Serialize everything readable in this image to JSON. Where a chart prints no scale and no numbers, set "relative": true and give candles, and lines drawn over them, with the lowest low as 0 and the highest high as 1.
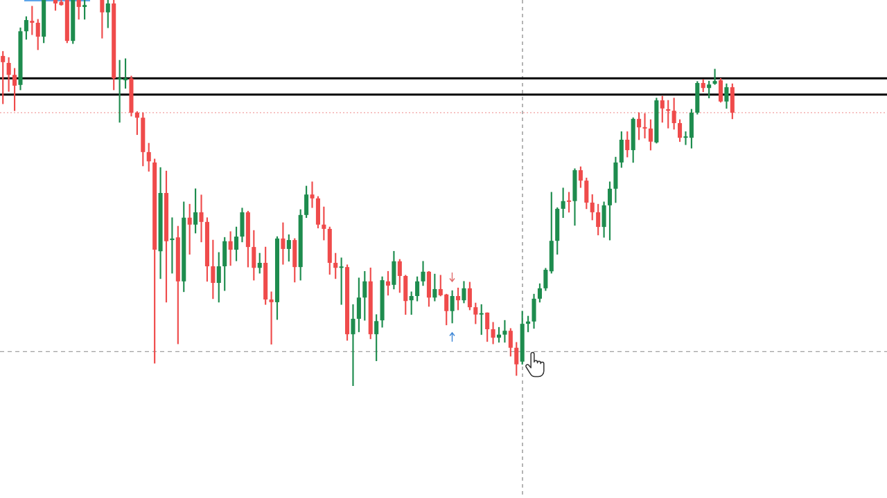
{
  "chart_data": {
    "type": "candlestick",
    "relative": true,
    "tick_labels": false,
    "categories": [
      null,
      null,
      null,
      null,
      null,
      null,
      null,
      null,
      null,
      null,
      null,
      null,
      null,
      null,
      null,
      null,
      null,
      null,
      null,
      null,
      null,
      null,
      null,
      null,
      null,
      null,
      null,
      null,
      null,
      null,
      null,
      null,
      null,
      null,
      null,
      null,
      null,
      null,
      null,
      null,
      null,
      null,
      null,
      null,
      null,
      null,
      null,
      null,
      null,
      null,
      null,
      null,
      null,
      null,
      null,
      null,
      null,
      null,
      null,
      null,
      null,
      null,
      null,
      null,
      null,
      null,
      null,
      null,
      null,
      null,
      null,
      null,
      null,
      null,
      null,
      null,
      null,
      null,
      null,
      null,
      null,
      null,
      null,
      null,
      null,
      null,
      null,
      null,
      null,
      null,
      null,
      null,
      null,
      null,
      null,
      null,
      null,
      null,
      null,
      null,
      null,
      null,
      null,
      null,
      null,
      null,
      null,
      null,
      null,
      null,
      null,
      null,
      null,
      null,
      null,
      null,
      null,
      null,
      null,
      null,
      null,
      null,
      null,
      null,
      null,
      null,
      null,
      null,
      null,
      null,
      null,
      null,
      null,
      null,
      null,
      null,
      null,
      null,
      null,
      null,
      null,
      null,
      null,
      null,
      null,
      null,
      null,
      null,
      null,
      null,
      null,
      null
    ],
    "ohlc": [
      [
        0.855,
        0.867,
        0.731,
        0.839
      ],
      [
        0.837,
        0.851,
        0.763,
        0.806
      ],
      [
        0.806,
        0.823,
        0.713,
        0.778
      ],
      [
        0.78,
        0.928,
        0.767,
        0.919
      ],
      [
        0.919,
        0.957,
        0.898,
        0.948
      ],
      [
        0.946,
        0.984,
        0.91,
        0.941
      ],
      [
        0.941,
        0.95,
        0.871,
        0.905
      ],
      [
        0.905,
        1,
        0.889,
        1
      ],
      null,
      [
        1,
        1,
        0.973,
        0.991
      ],
      [
        0.995,
        1,
        0.986,
        0.987
      ],
      [
        1,
        1,
        0.889,
        0.894
      ],
      [
        0.894,
        1,
        0.887,
        1
      ],
      [
        1,
        1,
        0.95,
        0.982
      ],
      [
        0.982,
        1,
        0.95,
        0.987
      ],
      null,
      null,
      [
        1,
        1,
        0.901,
        0.968
      ],
      [
        0.968,
        1,
        0.928,
        0.991
      ],
      [
        0.991,
        1,
        0.767,
        0.797
      ],
      [
        0.794,
        0.844,
        0.683,
        0.797
      ],
      [
        0.792,
        0.848,
        0.771,
        0.797
      ],
      [
        0.797,
        0.803,
        0.699,
        0.708
      ],
      [
        0.708,
        0.711,
        0.651,
        0.695
      ],
      [
        0.695,
        0.708,
        0.57,
        0.606
      ],
      [
        0.606,
        0.629,
        0.556,
        0.582
      ],
      [
        0.579,
        0.588,
        0.059,
        0.353
      ],
      [
        0.349,
        0.566,
        0.278,
        0.5
      ],
      [
        0.5,
        0.557,
        0.217,
        0.375
      ],
      [
        0.378,
        0.436,
        0.292,
        0.382
      ],
      [
        0.385,
        0.414,
        0.109,
        0.271
      ],
      [
        0.271,
        0.477,
        0.244,
        0.436
      ],
      [
        0.436,
        0.471,
        0.341,
        0.418
      ],
      [
        0.418,
        0.511,
        0.396,
        0.45
      ],
      [
        0.45,
        0.495,
        0.373,
        0.425
      ],
      [
        0.425,
        0.436,
        0.271,
        0.31
      ],
      [
        0.31,
        0.378,
        0.226,
        0.267
      ],
      [
        0.267,
        0.346,
        0.217,
        0.31
      ],
      [
        0.31,
        0.385,
        0.247,
        0.375
      ],
      [
        0.375,
        0.4,
        0.312,
        0.353
      ],
      [
        0.353,
        0.412,
        0.324,
        0.387
      ],
      [
        0.387,
        0.461,
        0.373,
        0.45
      ],
      [
        0.45,
        0.453,
        0.308,
        0.36
      ],
      [
        0.36,
        0.403,
        0.274,
        0.306
      ],
      [
        0.306,
        0.344,
        0.292,
        0.319
      ],
      [
        0.319,
        0.36,
        0.211,
        0.224
      ],
      [
        0.224,
        0.244,
        0.108,
        0.217
      ],
      [
        0.217,
        0.387,
        0.172,
        0.382
      ],
      [
        0.382,
        0.423,
        0.315,
        0.355
      ],
      [
        0.355,
        0.392,
        0.323,
        0.378
      ],
      [
        0.378,
        0.382,
        0.269,
        0.308
      ],
      [
        0.308,
        0.457,
        0.274,
        0.443
      ],
      [
        0.443,
        0.518,
        0.436,
        0.496
      ],
      [
        0.496,
        0.529,
        0.462,
        0.486
      ],
      [
        0.486,
        0.491,
        0.409,
        0.418
      ],
      [
        0.418,
        0.464,
        0.378,
        0.407
      ],
      [
        0.407,
        0.412,
        0.289,
        0.319
      ],
      [
        0.319,
        0.344,
        0.278,
        0.306
      ],
      [
        0.306,
        0.332,
        0.211,
        0.308
      ],
      [
        0.308,
        0.314,
        0.118,
        0.134
      ],
      [
        0.134,
        0.211,
        0,
        0.174
      ],
      [
        0.174,
        0.28,
        0.14,
        0.229
      ],
      [
        0.229,
        0.297,
        0.17,
        0.271
      ],
      [
        0.271,
        0.306,
        0.122,
        0.134
      ],
      [
        0.134,
        0.185,
        0.065,
        0.168
      ],
      [
        0.17,
        0.283,
        0.152,
        0.274
      ],
      [
        0.271,
        0.297,
        0.235,
        0.26
      ],
      [
        0.262,
        0.349,
        0.251,
        0.323
      ],
      [
        0.323,
        0.328,
        0.242,
        0.285
      ],
      [
        0.285,
        0.287,
        0.185,
        0.22
      ],
      [
        0.222,
        0.244,
        0.185,
        0.233
      ],
      [
        0.233,
        0.283,
        0.22,
        0.271
      ],
      [
        0.271,
        0.323,
        0.26,
        0.296
      ],
      [
        0.296,
        0.297,
        0.206,
        0.229
      ],
      [
        0.229,
        0.29,
        0.22,
        0.251
      ],
      [
        0.251,
        0.287,
        0.233,
        0.235
      ],
      [
        0.237,
        0.238,
        0.158,
        0.194
      ],
      [
        0.194,
        0.247,
        0.163,
        0.233
      ],
      [
        0.233,
        0.254,
        0.197,
        0.222
      ],
      [
        0.222,
        0.271,
        0.215,
        0.253
      ],
      [
        0.253,
        0.269,
        0.197,
        0.204
      ],
      [
        0.204,
        0.215,
        0.161,
        0.185
      ],
      [
        0.185,
        0.211,
        0.133,
        0.188
      ],
      [
        0.19,
        0.19,
        0.115,
        0.147
      ],
      [
        0.147,
        0.165,
        0.109,
        0.125
      ],
      [
        0.125,
        0.152,
        0.113,
        0.133
      ],
      [
        0.133,
        0.17,
        0.113,
        0.143
      ],
      [
        0.143,
        0.149,
        0.077,
        0.099
      ],
      [
        0.099,
        0.113,
        0.027,
        0.056
      ],
      [
        0.063,
        0.194,
        0.056,
        0.161
      ],
      [
        0.161,
        0.181,
        0.14,
        0.167
      ],
      [
        0.167,
        0.238,
        0.149,
        0.226
      ],
      [
        0.226,
        0.265,
        0.217,
        0.253
      ],
      [
        0.253,
        0.305,
        0.247,
        0.301
      ],
      [
        0.297,
        0.502,
        0.292,
        0.376
      ],
      [
        0.376,
        0.462,
        0.341,
        0.459
      ],
      [
        0.459,
        0.513,
        0.436,
        0.479
      ],
      [
        0.48,
        0.502,
        0.45,
        0.477
      ],
      [
        0.479,
        0.563,
        0.416,
        0.559
      ],
      [
        0.559,
        0.568,
        0.514,
        0.532
      ],
      [
        0.532,
        0.539,
        0.459,
        0.475
      ],
      [
        0.475,
        0.496,
        0.43,
        0.45
      ],
      [
        0.45,
        0.471,
        0.391,
        0.412
      ],
      [
        0.412,
        0.477,
        0.385,
        0.468
      ],
      [
        0.468,
        0.529,
        0.378,
        0.511
      ],
      [
        0.511,
        0.593,
        0.475,
        0.579
      ],
      [
        0.579,
        0.659,
        0.566,
        0.638
      ],
      [
        0.638,
        0.659,
        0.593,
        0.611
      ],
      [
        0.611,
        0.695,
        0.579,
        0.692
      ],
      [
        0.692,
        0.708,
        0.638,
        0.67
      ],
      [
        0.67,
        0.706,
        0.642,
        0.667
      ],
      [
        0.667,
        0.69,
        0.611,
        0.633
      ],
      [
        0.631,
        0.746,
        0.629,
        0.74
      ],
      [
        0.74,
        0.751,
        0.683,
        0.719
      ],
      [
        0.717,
        0.74,
        0.668,
        0.713
      ],
      [
        0.713,
        0.746,
        0.665,
        0.681
      ],
      [
        0.681,
        0.69,
        0.633,
        0.643
      ],
      [
        0.643,
        0.659,
        0.625,
        0.645
      ],
      [
        0.643,
        0.717,
        0.616,
        0.708
      ],
      [
        0.708,
        0.789,
        0.704,
        0.785
      ],
      [
        0.785,
        0.794,
        0.762,
        0.772
      ],
      [
        0.772,
        0.79,
        0.746,
        0.781
      ],
      [
        0.783,
        0.821,
        0.781,
        0.79
      ],
      [
        0.792,
        0.797,
        0.735,
        0.737
      ],
      [
        0.737,
        0.783,
        0.719,
        0.774
      ],
      [
        0.774,
        0.783,
        0.692,
        0.708
      ],
      null,
      null,
      null,
      null,
      null,
      null,
      null,
      null,
      null,
      null,
      null,
      null,
      null,
      null,
      null,
      null,
      null,
      null,
      null,
      null,
      null,
      null,
      null,
      null,
      null,
      null
    ],
    "colors": [
      "#ef4b4b",
      "#ef4b4b",
      "#ef4b4b",
      "#1e8c4e",
      "#1e8c4e",
      "#ef4b4b",
      "#ef4b4b",
      "#1e8c4e",
      null,
      "#ef4b4b",
      "#ef4b4b",
      "#ef4b4b",
      "#1e8c4e",
      "#ef4b4b",
      "#1e8c4e",
      null,
      null,
      "#ef4b4b",
      "#1e8c4e",
      "#ef4b4b",
      "#1e8c4e",
      "#1e8c4e",
      "#ef4b4b",
      "#ef4b4b",
      "#ef4b4b",
      "#ef4b4b",
      "#ef4b4b",
      "#1e8c4e",
      "#ef4b4b",
      "#1e8c4e",
      "#ef4b4b",
      "#1e8c4e",
      "#ef4b4b",
      "#1e8c4e",
      "#ef4b4b",
      "#ef4b4b",
      "#ef4b4b",
      "#1e8c4e",
      "#1e8c4e",
      "#ef4b4b",
      "#1e8c4e",
      "#1e8c4e",
      "#ef4b4b",
      "#ef4b4b",
      "#1e8c4e",
      "#ef4b4b",
      "#ef4b4b",
      "#1e8c4e",
      "#ef4b4b",
      "#1e8c4e",
      "#ef4b4b",
      "#1e8c4e",
      "#1e8c4e",
      "#ef4b4b",
      "#ef4b4b",
      "#ef4b4b",
      "#ef4b4b",
      "#ef4b4b",
      "#1e8c4e",
      "#ef4b4b",
      "#1e8c4e",
      "#1e8c4e",
      "#1e8c4e",
      "#ef4b4b",
      "#1e8c4e",
      "#1e8c4e",
      "#ef4b4b",
      "#1e8c4e",
      "#ef4b4b",
      "#ef4b4b",
      "#1e8c4e",
      "#1e8c4e",
      "#1e8c4e",
      "#ef4b4b",
      "#1e8c4e",
      "#ef4b4b",
      "#ef4b4b",
      "#1e8c4e",
      "#ef4b4b",
      "#1e8c4e",
      "#ef4b4b",
      "#ef4b4b",
      "#1e8c4e",
      "#ef4b4b",
      "#ef4b4b",
      "#1e8c4e",
      "#1e8c4e",
      "#ef4b4b",
      "#ef4b4b",
      "#1e8c4e",
      "#1e8c4e",
      "#1e8c4e",
      "#1e8c4e",
      "#1e8c4e",
      "#1e8c4e",
      "#1e8c4e",
      "#1e8c4e",
      "#ef4b4b",
      "#1e8c4e",
      "#ef4b4b",
      "#ef4b4b",
      "#ef4b4b",
      "#ef4b4b",
      "#1e8c4e",
      "#1e8c4e",
      "#1e8c4e",
      "#1e8c4e",
      "#ef4b4b",
      "#1e8c4e",
      "#ef4b4b",
      "#ef4b4b",
      "#ef4b4b",
      "#1e8c4e",
      "#ef4b4b",
      "#ef4b4b",
      "#ef4b4b",
      "#ef4b4b",
      "#1e8c4e",
      "#1e8c4e",
      "#1e8c4e",
      "#ef4b4b",
      "#1e8c4e",
      "#1e8c4e",
      "#ef4b4b",
      "#1e8c4e",
      "#ef4b4b",
      null,
      null,
      null,
      null,
      null,
      null,
      null,
      null,
      null,
      null,
      null,
      null,
      null,
      null,
      null,
      null,
      null,
      null,
      null,
      null,
      null,
      null,
      null,
      null,
      null,
      null
    ],
    "ref_lines": [
      {
        "axis": "y",
        "value": 0.797,
        "color": "#000000",
        "line_style": "solid"
      },
      {
        "axis": "y",
        "value": 0.755,
        "color": "#000000",
        "line_style": "solid"
      },
      {
        "axis": "y",
        "value": 0.708,
        "color": "#f2a0a0",
        "line_style": "dotted"
      },
      {
        "axis": "y",
        "value": 0.089,
        "color": "#a0a0a0",
        "line_style": "dashed"
      }
    ]
  }
}
